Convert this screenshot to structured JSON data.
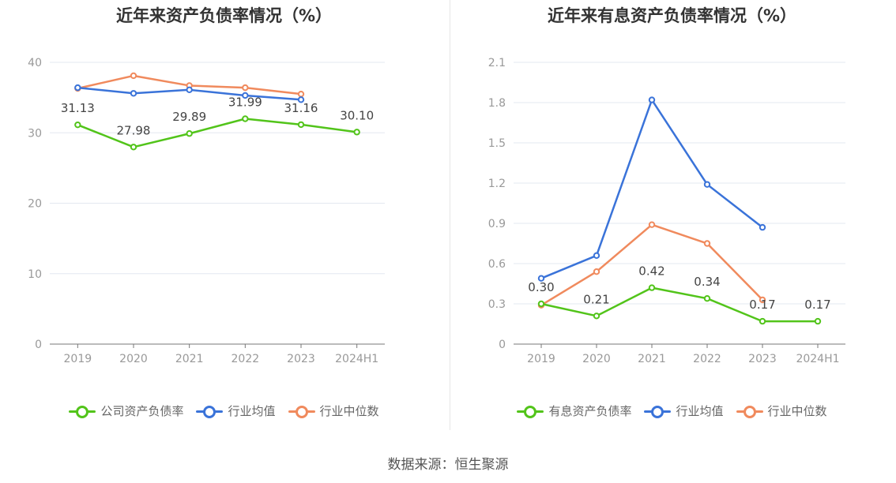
{
  "source_label": "数据来源：恒生聚源",
  "colors": {
    "company": "#52c41a",
    "avg": "#3a73d9",
    "median": "#f08a5d"
  },
  "chart_data": [
    {
      "type": "line",
      "title": "近年来资产负债率情况（%）",
      "categories": [
        "2019",
        "2020",
        "2021",
        "2022",
        "2023",
        "2024H1"
      ],
      "ylim": [
        0,
        40
      ],
      "yticks": [
        "0",
        "10",
        "20",
        "30",
        "40"
      ],
      "grid": true,
      "legend_position": "bottom",
      "series": [
        {
          "name": "公司资产负债率",
          "values": [
            31.13,
            27.98,
            29.89,
            31.99,
            31.16,
            30.1
          ],
          "labels": [
            "31.13",
            "27.98",
            "29.89",
            "31.99",
            "31.16",
            "30.10"
          ]
        },
        {
          "name": "行业均值",
          "values": [
            36.4,
            35.6,
            36.1,
            35.3,
            34.7,
            null
          ]
        },
        {
          "name": "行业中位数",
          "values": [
            36.3,
            38.1,
            36.7,
            36.4,
            35.5,
            null
          ]
        }
      ]
    },
    {
      "type": "line",
      "title": "近年来有息资产负债率情况（%）",
      "categories": [
        "2019",
        "2020",
        "2021",
        "2022",
        "2023",
        "2024H1"
      ],
      "ylim": [
        0,
        2.1
      ],
      "yticks": [
        "0",
        "0.3",
        "0.6",
        "0.9",
        "1.2",
        "1.5",
        "1.8",
        "2.1"
      ],
      "grid": true,
      "legend_position": "bottom",
      "series": [
        {
          "name": "有息资产负债率",
          "values": [
            0.3,
            0.21,
            0.42,
            0.34,
            0.17,
            0.17
          ],
          "labels": [
            "0.30",
            "0.21",
            "0.42",
            "0.34",
            "0.17",
            "0.17"
          ]
        },
        {
          "name": "行业均值",
          "values": [
            0.49,
            0.66,
            1.82,
            1.19,
            0.87,
            null
          ]
        },
        {
          "name": "行业中位数",
          "values": [
            0.29,
            0.54,
            0.89,
            0.75,
            0.33,
            null
          ]
        }
      ]
    }
  ]
}
